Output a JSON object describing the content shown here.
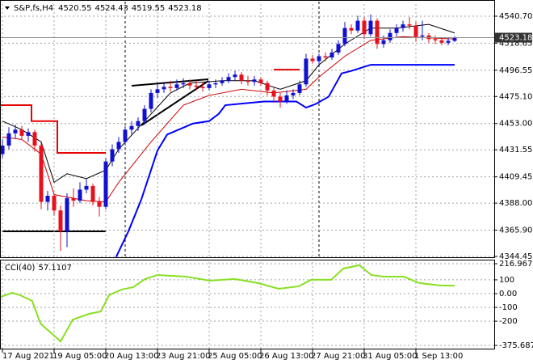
{
  "chart_data": [
    {
      "type": "candlestick",
      "title": "S&P,fs,H4",
      "categories": [
        "17 Aug 2021",
        null,
        null,
        null,
        null,
        null,
        null,
        null,
        "19 Aug 05:00",
        null,
        null,
        null,
        null,
        null,
        null,
        null,
        "20 Aug 13:00",
        null,
        null,
        null,
        null,
        null,
        null,
        null,
        "23 Aug 21:00",
        null,
        null,
        null,
        null,
        null,
        null,
        null,
        "25 Aug 05:00",
        null,
        null,
        null,
        null,
        null,
        null,
        null,
        "26 Aug 13:00",
        null,
        null,
        null,
        null,
        null,
        null,
        null,
        "27 Aug 21:00",
        null,
        null,
        null,
        null,
        null,
        null,
        null,
        "31 Aug 05:00",
        null,
        null,
        null,
        null,
        null,
        null,
        null,
        "1 Sep 13:00",
        null,
        null,
        null,
        null,
        null,
        null
      ],
      "open": [
        4428,
        4435,
        4445,
        4448,
        4443,
        4446,
        4435,
        4389,
        4394,
        4382,
        4365,
        4392,
        4390,
        4399,
        4402,
        4389,
        4385,
        4422,
        4432,
        4438,
        4448,
        4451,
        4455,
        4465,
        4478,
        4481,
        4483,
        4482,
        4485,
        4486,
        4484,
        4483,
        4482,
        4485,
        4486,
        4488,
        4491,
        4493,
        4488,
        4487,
        4489,
        4486,
        4480,
        4475,
        4471,
        4476,
        4478,
        4485,
        4506,
        4504,
        4508,
        4507,
        4511,
        4518,
        4531,
        4529,
        4537,
        4526,
        4537,
        4518,
        4521,
        4527,
        4531,
        4534,
        4533,
        4524,
        4525,
        4522,
        4521,
        4519,
        4520.55
      ],
      "high": [
        4440,
        4450,
        4452,
        4451,
        4449,
        4448,
        4437,
        4398,
        4396,
        4386,
        4396,
        4400,
        4405,
        4408,
        4404,
        4393,
        4425,
        4436,
        4442,
        4451,
        4455,
        4458,
        4468,
        4481,
        4485,
        4487,
        4488,
        4489,
        4490,
        4489,
        4488,
        4487,
        4488,
        4489,
        4491,
        4494,
        4496,
        4495,
        4492,
        4492,
        4491,
        4488,
        4483,
        4478,
        4480,
        4481,
        4488,
        4510,
        4509,
        4510,
        4511,
        4514,
        4521,
        4536,
        4534,
        4541,
        4540,
        4542,
        4539,
        4525,
        4530,
        4534,
        4537,
        4540,
        4536,
        4537,
        4527,
        4525,
        4523,
        4523,
        4524.43
      ],
      "low": [
        4425,
        4432,
        4441,
        4440,
        4438,
        4430,
        4383,
        4382,
        4378,
        4349,
        4352,
        4385,
        4388,
        4396,
        4386,
        4377,
        4383,
        4418,
        4429,
        4435,
        4444,
        4447,
        4452,
        4462,
        4474,
        4478,
        4479,
        4480,
        4482,
        4481,
        4480,
        4479,
        4480,
        4482,
        4484,
        4486,
        4488,
        4485,
        4484,
        4484,
        4484,
        4476,
        4470,
        4466,
        4469,
        4473,
        4476,
        4483,
        4502,
        4501,
        4504,
        4505,
        4509,
        4516,
        4526,
        4527,
        4522,
        4524,
        4514,
        4515,
        4519,
        4524,
        4528,
        4530,
        4520,
        4521,
        4519,
        4518,
        4517,
        4517,
        4519.55
      ],
      "close": [
        4435,
        4445,
        4448,
        4443,
        4446,
        4435,
        4389,
        4394,
        4382,
        4365,
        4392,
        4390,
        4399,
        4402,
        4389,
        4385,
        4422,
        4432,
        4438,
        4448,
        4451,
        4455,
        4465,
        4478,
        4481,
        4483,
        4482,
        4485,
        4486,
        4484,
        4483,
        4482,
        4485,
        4486,
        4488,
        4491,
        4493,
        4488,
        4487,
        4489,
        4486,
        4480,
        4475,
        4471,
        4476,
        4478,
        4485,
        4506,
        4504,
        4508,
        4507,
        4511,
        4518,
        4531,
        4529,
        4537,
        4526,
        4537,
        4518,
        4521,
        4527,
        4531,
        4534,
        4533,
        4524,
        4525,
        4522,
        4521,
        4519,
        4520.55,
        4523.18
      ],
      "up_color": "#1010d0",
      "down_color": "#e8101c",
      "lines": [
        {
          "color": "#000000",
          "width": 1,
          "x": [
            0,
            3,
            6,
            8,
            10,
            13,
            16,
            18,
            22,
            26,
            29,
            34,
            39,
            43,
            47,
            49,
            53,
            57,
            61,
            66,
            70
          ],
          "values": [
            4455,
            4448,
            4438,
            4405,
            4412,
            4408,
            4415,
            4432,
            4455,
            4478,
            4486,
            4488,
            4488,
            4481,
            4488,
            4501,
            4518,
            4531,
            4531,
            4534,
            4527
          ]
        },
        {
          "color": "#cc0000",
          "width": 1,
          "x": [
            0,
            3,
            6,
            8,
            13,
            16,
            18,
            23,
            28,
            32,
            37,
            42,
            47,
            49,
            53,
            57,
            62,
            66,
            70
          ],
          "values": [
            4442,
            4440,
            4428,
            4395,
            4390,
            4389,
            4405,
            4438,
            4468,
            4476,
            4481,
            4478,
            4481,
            4491,
            4508,
            4521,
            4524,
            4523,
            4522
          ]
        },
        {
          "color": "#e80000",
          "width": 2,
          "x": [
            -0.5,
            4.5,
            4.5,
            8.5,
            8.5,
            16,
            null,
            42,
            46
          ],
          "values": [
            4468,
            4468,
            4455,
            4455,
            4429,
            4429,
            null,
            4497,
            4497
          ]
        },
        {
          "color": "#0000ff",
          "width": 2,
          "x": [
            17.6,
            19.5,
            21.5,
            24,
            25.5,
            29.5,
            32,
            33.5,
            34.5,
            40.5,
            45.5,
            47,
            48.5,
            50.5,
            52.5,
            54,
            57,
            70
          ],
          "values": [
            4344,
            4365,
            4391,
            4431,
            4444,
            4453,
            4455,
            4461,
            4468,
            4471,
            4471,
            4466,
            4469,
            4475,
            4494,
            4496,
            4501,
            4501
          ]
        }
      ],
      "ylim": [
        4343.8,
        4552.6
      ],
      "yticks": [
        {
          "value": 4540.7,
          "label": "4540.70"
        },
        4518.65,
        4496.55,
        {
          "value": 4475.1,
          "label": "4475.10"
        },
        {
          "value": 4453,
          "label": "4453.00"
        },
        4431.55,
        4409.45,
        {
          "value": 4388,
          "label": "4388.00"
        },
        {
          "value": 4365.9,
          "label": "4365.90"
        },
        4344.45
      ],
      "last_price": 4523.18,
      "grid": true
    },
    {
      "type": "line",
      "title": "CCI(40)",
      "color": "#88e020",
      "x": [
        -0.5,
        1.5,
        2.75,
        4.6,
        5.9,
        7.75,
        9,
        10.9,
        13.4,
        15.25,
        16.5,
        18.4,
        20.25,
        22.1,
        24,
        28.4,
        32.1,
        35.9,
        39.6,
        42.75,
        45.9,
        47.75,
        50.9,
        52.75,
        55.25,
        57.1,
        59,
        62.1,
        64.6,
        67.75,
        70
      ],
      "values": [
        -29,
        6,
        -12,
        -53,
        -218,
        -294,
        -347,
        -188,
        -147,
        -129,
        -12,
        29,
        47,
        106,
        135,
        123,
        94,
        106,
        76,
        35,
        53,
        100,
        100,
        182,
        206,
        135,
        123,
        123,
        76,
        59,
        57.1107
      ],
      "ylim": [
        -375.6877,
        216.9672
      ],
      "yticks": [
        216.9672,
        100,
        {
          "value": 0,
          "label": "0.00"
        },
        -100,
        -200,
        -375.6877
      ],
      "grid": true
    }
  ]
}
